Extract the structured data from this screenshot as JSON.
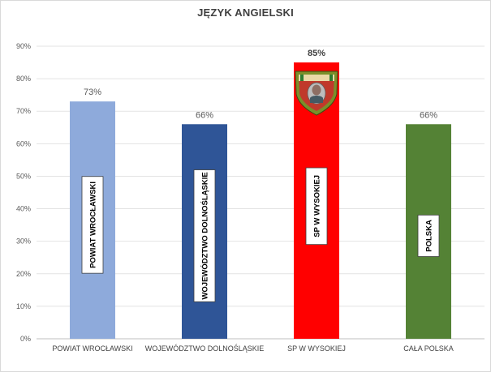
{
  "chart_data": {
    "type": "bar",
    "title": "JĘZYK ANGIELSKI",
    "xlabel": "",
    "ylabel": "",
    "ylim": [
      0,
      90
    ],
    "yticks": [
      "0%",
      "10%",
      "20%",
      "30%",
      "40%",
      "50%",
      "60%",
      "70%",
      "80%",
      "90%"
    ],
    "grid": true,
    "categories": [
      "POWIAT WROCŁAWSKI",
      "WOJEWÓDZTWO DOLNOŚLĄSKIE",
      "SP W WYSOKIEJ",
      "CAŁA POLSKA"
    ],
    "values": [
      73,
      66,
      85,
      66
    ],
    "value_labels": [
      "73%",
      "66%",
      "85%",
      "66%"
    ],
    "bar_tags": [
      "POWIAT WROCŁAWSKI",
      "WOJEWÓDZTWO DOLNOŚLĄSKIE",
      "SP W WYSOKIEJ",
      "POLSKA"
    ],
    "colors": [
      "#8eaadb",
      "#2f5597",
      "#ff0000",
      "#548235"
    ],
    "highlight_index": 2,
    "emblem": "school-crest-icon"
  }
}
